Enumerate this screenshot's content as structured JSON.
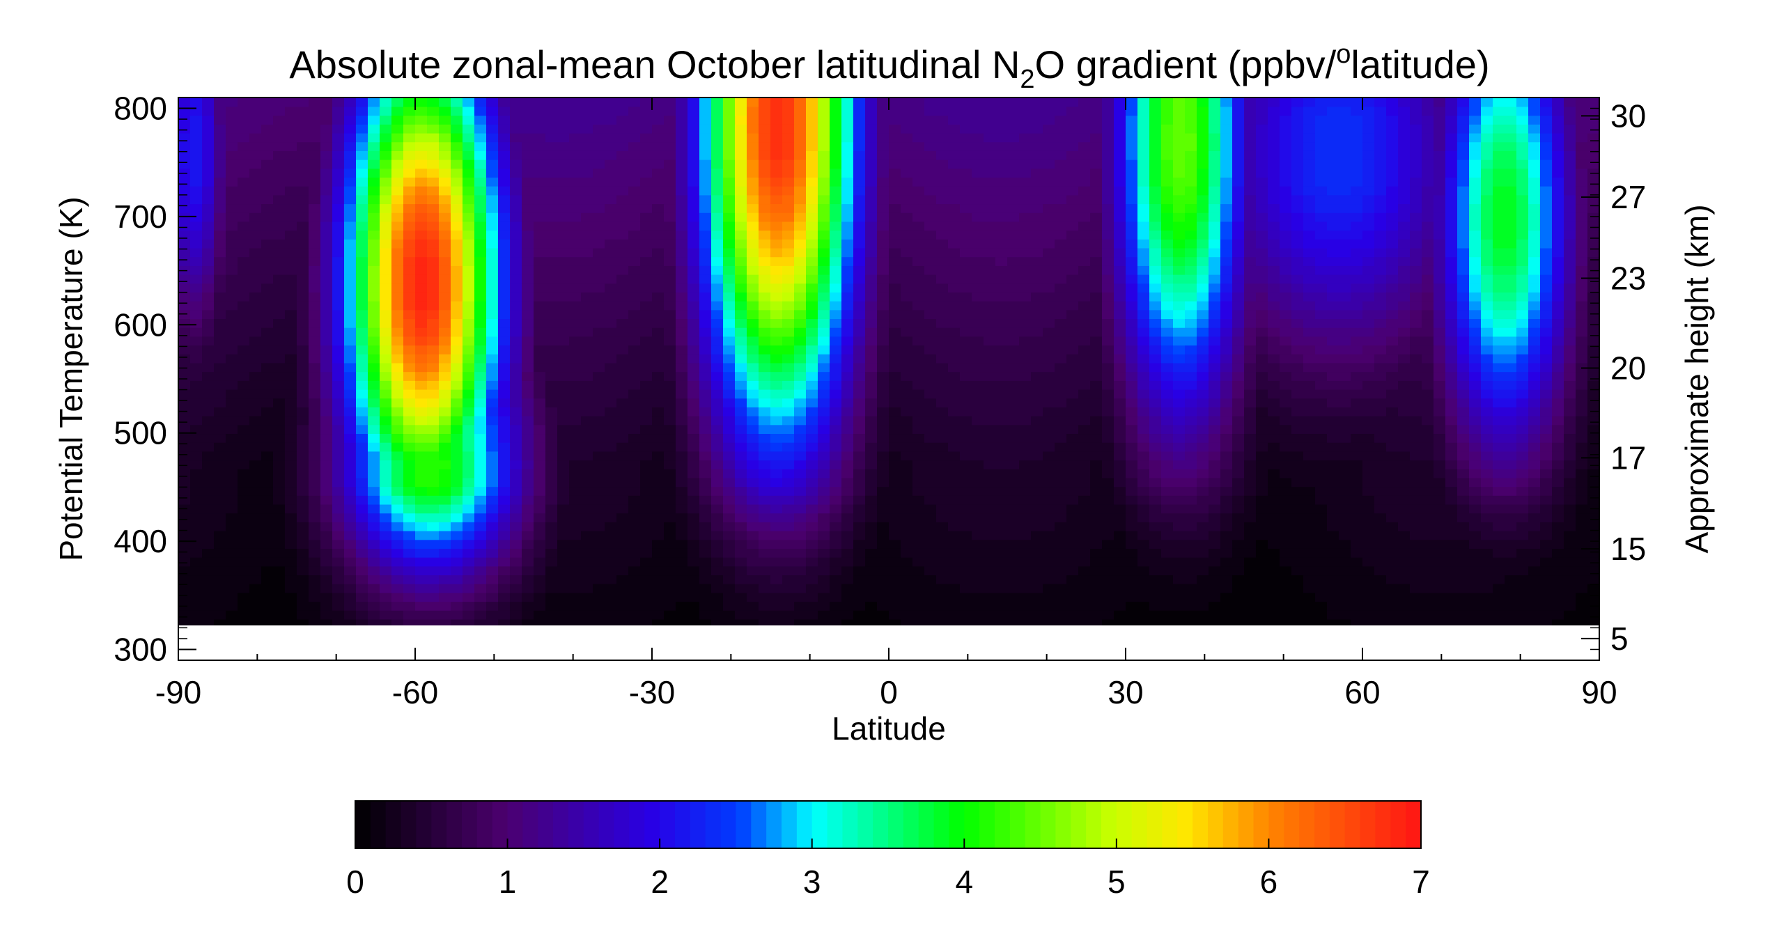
{
  "chart_data": {
    "type": "heatmap",
    "title_parts": {
      "main": "Absolute zonal-mean October latitudinal N",
      "subscript": "2",
      "after_sub": "O gradient (ppbv/",
      "superscript": "o",
      "after_sup": "latitude)"
    },
    "xlabel": "Latitude",
    "ylabel_left": "Potential Temperature (K)",
    "ylabel_right": "Approximate height (km)",
    "xlim": [
      -90,
      90
    ],
    "ylim": [
      290,
      810
    ],
    "data_ylim": [
      320,
      810
    ],
    "x_ticks": [
      -90,
      -60,
      -30,
      0,
      30,
      60,
      90
    ],
    "x_tick_labels": [
      "-90",
      "-60",
      "-30",
      "0",
      "30",
      "60",
      "90"
    ],
    "y_left_ticks": [
      300,
      400,
      500,
      600,
      700,
      800
    ],
    "y_left_tick_labels": [
      "300",
      "400",
      "500",
      "600",
      "700",
      "800"
    ],
    "y_right_ticks": [
      300,
      403,
      491,
      590,
      674,
      798
    ],
    "y_right_tick_labels": [
      "5",
      "15",
      "17",
      "20",
      "23",
      "27",
      "30"
    ],
    "y_right_tick_values": [
      310,
      393,
      477,
      560,
      643,
      718,
      793
    ],
    "colorbar": {
      "min": 0,
      "max": 7,
      "ticks": [
        0,
        1,
        2,
        3,
        4,
        5,
        6,
        7
      ],
      "tick_labels": [
        "0",
        "1",
        "2",
        "3",
        "4",
        "5",
        "6",
        "7"
      ],
      "levels": 70,
      "colormap": "rainbow-black"
    },
    "features": [
      {
        "lat": -59,
        "theta": 640,
        "value": 6.9,
        "width": 7,
        "height": 160
      },
      {
        "lat": -58,
        "theta": 470,
        "value": 4.2,
        "width": 8,
        "height": 110
      },
      {
        "lat": -14,
        "theta": 790,
        "value": 6.8,
        "width": 7,
        "height": 210
      },
      {
        "lat": 37,
        "theta": 770,
        "value": 4.5,
        "width": 6,
        "height": 180
      },
      {
        "lat": 78,
        "theta": 700,
        "value": 3.9,
        "width": 6,
        "height": 150
      },
      {
        "lat": 57,
        "theta": 760,
        "value": 2.4,
        "width": 12,
        "height": 140
      },
      {
        "lat": -88,
        "theta": 760,
        "value": 2.2,
        "width": 3,
        "height": 120
      }
    ]
  }
}
